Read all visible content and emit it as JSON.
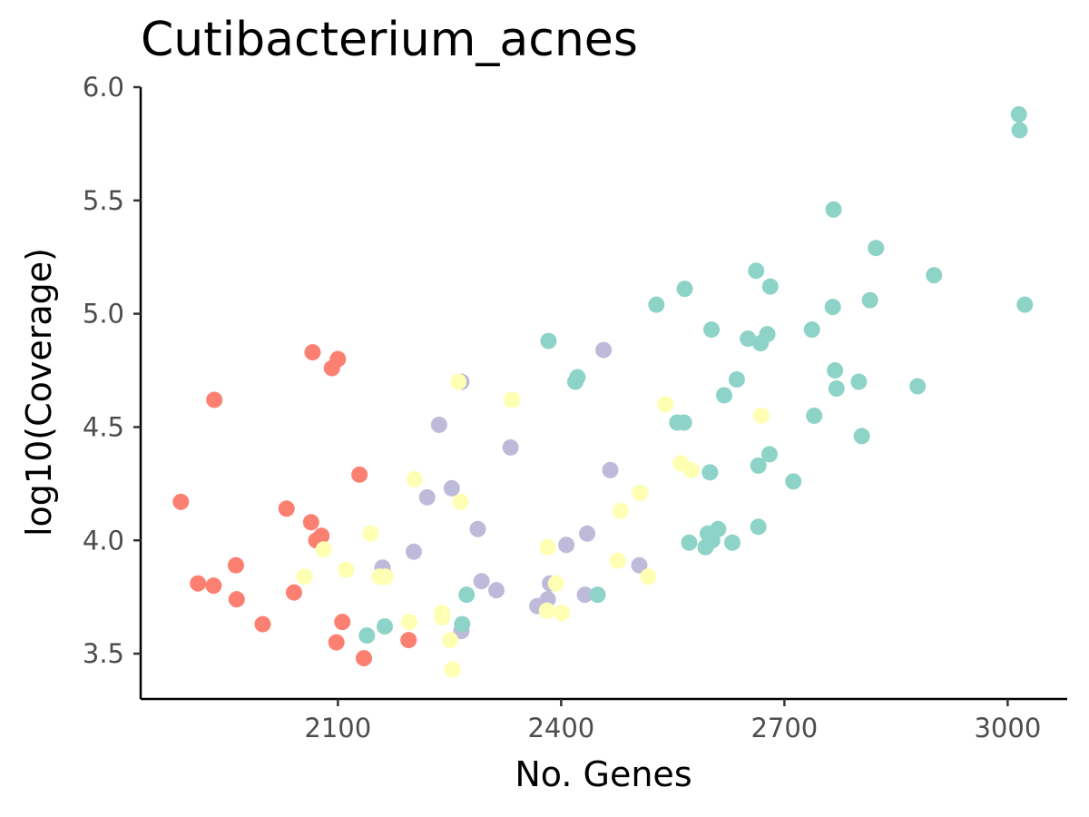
{
  "chart_data": {
    "type": "scatter",
    "title": "Cutibacterium_acnes",
    "xlabel": "No. Genes",
    "ylabel": "log10(Coverage)",
    "xlim": [
      1835,
      3080
    ],
    "ylim": [
      3.3,
      6.0
    ],
    "x_ticks": [
      2100,
      2400,
      2700,
      3000
    ],
    "x_tick_labels": [
      "2100",
      "2400",
      "2700",
      "3000"
    ],
    "y_ticks": [
      3.5,
      4.0,
      4.5,
      5.0,
      5.5,
      6.0
    ],
    "y_tick_labels": [
      "3.5",
      "4.0",
      "4.5",
      "5.0",
      "5.5",
      "6.0"
    ],
    "grid": false,
    "legend": false,
    "series": [
      {
        "color": "#FB8072",
        "points": [
          [
            1889,
            4.17
          ],
          [
            1912,
            3.81
          ],
          [
            1934,
            4.62
          ],
          [
            1933,
            3.8
          ],
          [
            1963,
            3.89
          ],
          [
            1964,
            3.74
          ],
          [
            1999,
            3.63
          ],
          [
            2031,
            4.14
          ],
          [
            2041,
            3.77
          ],
          [
            2064,
            4.08
          ],
          [
            2066,
            4.83
          ],
          [
            2071,
            4.0
          ],
          [
            2078,
            4.02
          ],
          [
            2092,
            4.76
          ],
          [
            2100,
            4.8
          ],
          [
            2098,
            3.55
          ],
          [
            2106,
            3.64
          ],
          [
            2129,
            4.29
          ],
          [
            2135,
            3.48
          ],
          [
            2162,
            3.85
          ],
          [
            2195,
            3.56
          ]
        ]
      },
      {
        "color": "#BEBADA",
        "points": [
          [
            2160,
            3.88
          ],
          [
            2202,
            3.95
          ],
          [
            2220,
            4.19
          ],
          [
            2236,
            4.51
          ],
          [
            2253,
            4.23
          ],
          [
            2266,
            3.6
          ],
          [
            2266,
            4.7
          ],
          [
            2288,
            4.05
          ],
          [
            2293,
            3.82
          ],
          [
            2313,
            3.78
          ],
          [
            2332,
            4.41
          ],
          [
            2368,
            3.71
          ],
          [
            2382,
            3.74
          ],
          [
            2385,
            3.81
          ],
          [
            2407,
            3.98
          ],
          [
            2432,
            3.76
          ],
          [
            2435,
            4.03
          ],
          [
            2457,
            4.84
          ],
          [
            2466,
            4.31
          ],
          [
            2505,
            3.89
          ]
        ]
      },
      {
        "color": "#8DD3C7",
        "points": [
          [
            2139,
            3.58
          ],
          [
            2163,
            3.62
          ],
          [
            2267,
            3.63
          ],
          [
            2273,
            3.76
          ],
          [
            2383,
            4.88
          ],
          [
            2419,
            4.7
          ],
          [
            2422,
            4.72
          ],
          [
            2449,
            3.76
          ],
          [
            2528,
            5.04
          ],
          [
            2556,
            4.52
          ],
          [
            2565,
            4.52
          ],
          [
            2566,
            5.11
          ],
          [
            2572,
            3.99
          ],
          [
            2594,
            3.97
          ],
          [
            2597,
            4.03
          ],
          [
            2600,
            4.3
          ],
          [
            2602,
            4.93
          ],
          [
            2603,
            4.0
          ],
          [
            2611,
            4.05
          ],
          [
            2619,
            4.64
          ],
          [
            2630,
            3.99
          ],
          [
            2636,
            4.71
          ],
          [
            2651,
            4.89
          ],
          [
            2662,
            5.19
          ],
          [
            2665,
            4.06
          ],
          [
            2665,
            4.33
          ],
          [
            2668,
            4.87
          ],
          [
            2677,
            4.91
          ],
          [
            2680,
            4.38
          ],
          [
            2681,
            5.12
          ],
          [
            2712,
            4.26
          ],
          [
            2737,
            4.93
          ],
          [
            2740,
            4.55
          ],
          [
            2765,
            5.03
          ],
          [
            2766,
            5.46
          ],
          [
            2768,
            4.75
          ],
          [
            2770,
            4.67
          ],
          [
            2800,
            4.7
          ],
          [
            2804,
            4.46
          ],
          [
            2815,
            5.06
          ],
          [
            2823,
            5.29
          ],
          [
            2879,
            4.68
          ],
          [
            2901,
            5.17
          ],
          [
            3015,
            5.88
          ],
          [
            3016,
            5.81
          ],
          [
            3023,
            5.04
          ]
        ]
      },
      {
        "color": "#FFFFB3",
        "points": [
          [
            2055,
            3.84
          ],
          [
            2081,
            3.96
          ],
          [
            2111,
            3.87
          ],
          [
            2144,
            4.03
          ],
          [
            2156,
            3.84
          ],
          [
            2164,
            3.84
          ],
          [
            2196,
            3.64
          ],
          [
            2203,
            4.27
          ],
          [
            2240,
            3.66
          ],
          [
            2240,
            3.68
          ],
          [
            2251,
            3.56
          ],
          [
            2254,
            3.43
          ],
          [
            2262,
            4.7
          ],
          [
            2265,
            4.17
          ],
          [
            2334,
            4.62
          ],
          [
            2381,
            3.69
          ],
          [
            2382,
            3.97
          ],
          [
            2393,
            3.81
          ],
          [
            2401,
            3.68
          ],
          [
            2476,
            3.91
          ],
          [
            2480,
            4.13
          ],
          [
            2506,
            4.21
          ],
          [
            2517,
            3.84
          ],
          [
            2540,
            4.6
          ],
          [
            2561,
            4.34
          ],
          [
            2575,
            4.31
          ],
          [
            2669,
            4.55
          ]
        ]
      }
    ]
  }
}
